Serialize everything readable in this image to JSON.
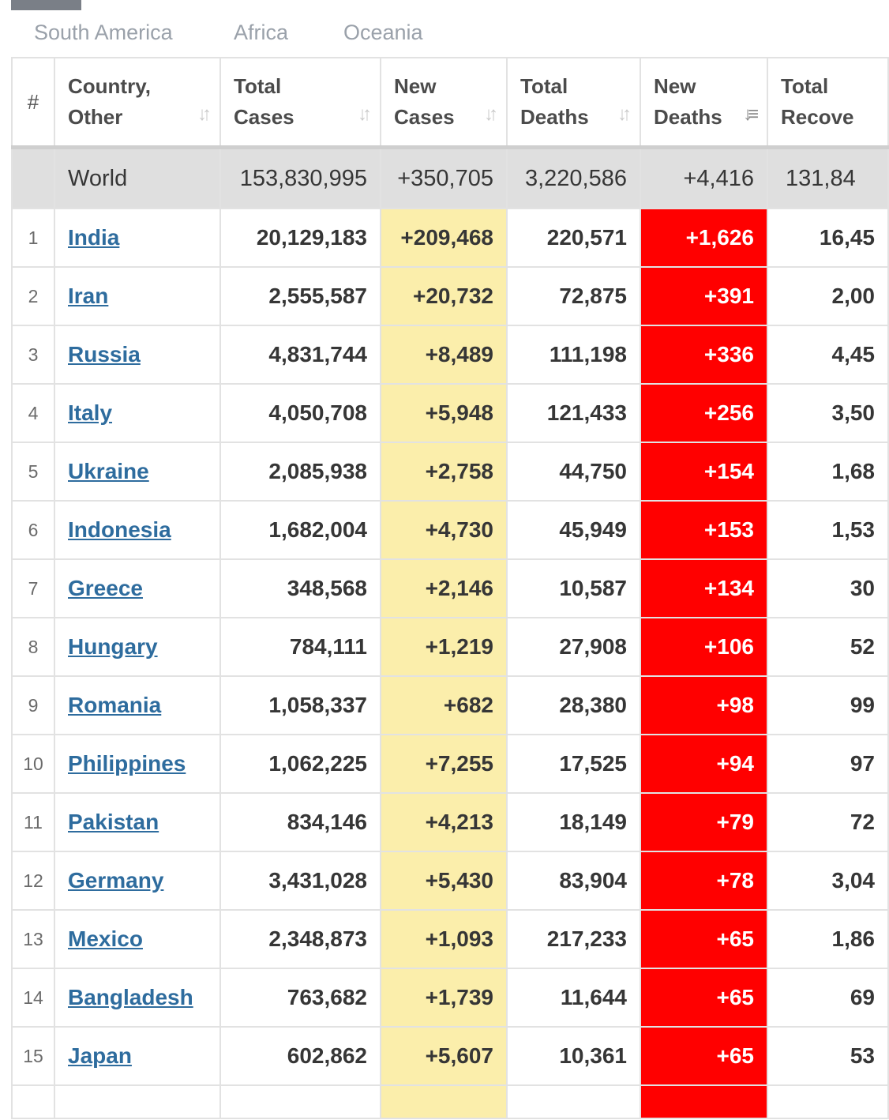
{
  "region_tabs": [
    "South America",
    "Africa",
    "Oceania"
  ],
  "columns": {
    "hash": "#",
    "country": "Country, Other",
    "total_cases": "Total Cases",
    "new_cases": "New Cases",
    "total_deaths": "Total Deaths",
    "new_deaths": "New Deaths",
    "total_recovered": "Total Recove"
  },
  "world": {
    "name": "World",
    "total_cases": "153,830,995",
    "new_cases": "+350,705",
    "total_deaths": "3,220,586",
    "new_deaths": "+4,416",
    "total_recovered": "131,84"
  },
  "rows": [
    {
      "rank": "1",
      "country": "India",
      "total_cases": "20,129,183",
      "new_cases": "+209,468",
      "total_deaths": "220,571",
      "new_deaths": "+1,626",
      "total_recovered": "16,45"
    },
    {
      "rank": "2",
      "country": "Iran",
      "total_cases": "2,555,587",
      "new_cases": "+20,732",
      "total_deaths": "72,875",
      "new_deaths": "+391",
      "total_recovered": "2,00"
    },
    {
      "rank": "3",
      "country": "Russia",
      "total_cases": "4,831,744",
      "new_cases": "+8,489",
      "total_deaths": "111,198",
      "new_deaths": "+336",
      "total_recovered": "4,45"
    },
    {
      "rank": "4",
      "country": "Italy",
      "total_cases": "4,050,708",
      "new_cases": "+5,948",
      "total_deaths": "121,433",
      "new_deaths": "+256",
      "total_recovered": "3,50"
    },
    {
      "rank": "5",
      "country": "Ukraine",
      "total_cases": "2,085,938",
      "new_cases": "+2,758",
      "total_deaths": "44,750",
      "new_deaths": "+154",
      "total_recovered": "1,68"
    },
    {
      "rank": "6",
      "country": "Indonesia",
      "total_cases": "1,682,004",
      "new_cases": "+4,730",
      "total_deaths": "45,949",
      "new_deaths": "+153",
      "total_recovered": "1,53"
    },
    {
      "rank": "7",
      "country": "Greece",
      "total_cases": "348,568",
      "new_cases": "+2,146",
      "total_deaths": "10,587",
      "new_deaths": "+134",
      "total_recovered": "30"
    },
    {
      "rank": "8",
      "country": "Hungary",
      "total_cases": "784,111",
      "new_cases": "+1,219",
      "total_deaths": "27,908",
      "new_deaths": "+106",
      "total_recovered": "52"
    },
    {
      "rank": "9",
      "country": "Romania",
      "total_cases": "1,058,337",
      "new_cases": "+682",
      "total_deaths": "28,380",
      "new_deaths": "+98",
      "total_recovered": "99"
    },
    {
      "rank": "10",
      "country": "Philippines",
      "total_cases": "1,062,225",
      "new_cases": "+7,255",
      "total_deaths": "17,525",
      "new_deaths": "+94",
      "total_recovered": "97"
    },
    {
      "rank": "11",
      "country": "Pakistan",
      "total_cases": "834,146",
      "new_cases": "+4,213",
      "total_deaths": "18,149",
      "new_deaths": "+79",
      "total_recovered": "72"
    },
    {
      "rank": "12",
      "country": "Germany",
      "total_cases": "3,431,028",
      "new_cases": "+5,430",
      "total_deaths": "83,904",
      "new_deaths": "+78",
      "total_recovered": "3,04"
    },
    {
      "rank": "13",
      "country": "Mexico",
      "total_cases": "2,348,873",
      "new_cases": "+1,093",
      "total_deaths": "217,233",
      "new_deaths": "+65",
      "total_recovered": "1,86"
    },
    {
      "rank": "14",
      "country": "Bangladesh",
      "total_cases": "763,682",
      "new_cases": "+1,739",
      "total_deaths": "11,644",
      "new_deaths": "+65",
      "total_recovered": "69"
    },
    {
      "rank": "15",
      "country": "Japan",
      "total_cases": "602,862",
      "new_cases": "+5,607",
      "total_deaths": "10,361",
      "new_deaths": "+65",
      "total_recovered": "53"
    }
  ],
  "colors": {
    "new_cases_highlight": "#fbeeab",
    "new_deaths_highlight": "#ff0000",
    "link": "#2e6c9e",
    "world_row_bg": "#dfdfdf"
  },
  "icons": {
    "sort_unsorted": "sort-arrows-icon",
    "sort_active": "sort-descending-icon"
  }
}
